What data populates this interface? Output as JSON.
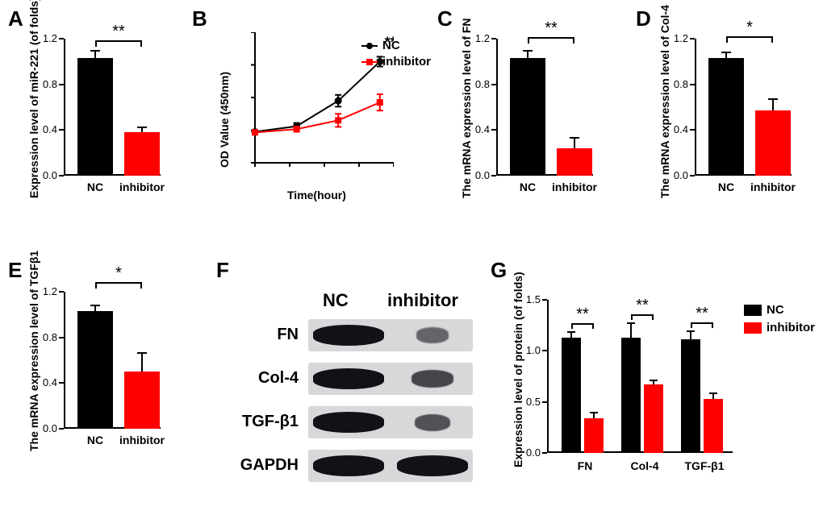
{
  "colors": {
    "nc": "#000000",
    "inhibitor": "#ff0000",
    "axis": "#000000",
    "bg": "#ffffff"
  },
  "panelA": {
    "label": "A",
    "type": "bar",
    "ylabel": "Expression level of miR-221 (of folds)",
    "ylim": [
      0,
      1.2
    ],
    "ytick_step": 0.4,
    "categories": [
      "NC",
      "inhibitor"
    ],
    "values": [
      1.03,
      0.38
    ],
    "errors": [
      0.07,
      0.05
    ],
    "bar_colors": [
      "#000000",
      "#ff0000"
    ],
    "sig": "**"
  },
  "panelB": {
    "label": "B",
    "type": "line",
    "ylabel": "OD Value (450nm)",
    "xlabel": "Time(hour)",
    "ylim": [
      0,
      4
    ],
    "ytick_step": 1,
    "xlim": [
      0,
      80
    ],
    "xtick_step": 20,
    "series": [
      {
        "name": "NC",
        "color": "#000000",
        "marker": "circle",
        "x": [
          0,
          24,
          48,
          72
        ],
        "y": [
          0.95,
          1.12,
          1.9,
          3.1
        ],
        "err": [
          0.05,
          0.1,
          0.18,
          0.15
        ]
      },
      {
        "name": "inhibitor",
        "color": "#ff0000",
        "marker": "square",
        "x": [
          0,
          24,
          48,
          72
        ],
        "y": [
          0.93,
          1.03,
          1.3,
          1.85
        ],
        "err": [
          0.05,
          0.08,
          0.2,
          0.25
        ]
      }
    ],
    "sig": "**",
    "legend": [
      "NC",
      "inhibitor"
    ]
  },
  "panelC": {
    "label": "C",
    "type": "bar",
    "ylabel": "The mRNA expression level of FN",
    "ylim": [
      0,
      1.2
    ],
    "ytick_step": 0.4,
    "categories": [
      "NC",
      "inhibitor"
    ],
    "values": [
      1.03,
      0.24
    ],
    "errors": [
      0.07,
      0.1
    ],
    "bar_colors": [
      "#000000",
      "#ff0000"
    ],
    "sig": "**"
  },
  "panelD": {
    "label": "D",
    "type": "bar",
    "ylabel": "The mRNA expression level of Col-4",
    "ylim": [
      0,
      1.2
    ],
    "ytick_step": 0.4,
    "categories": [
      "NC",
      "inhibitor"
    ],
    "values": [
      1.03,
      0.57
    ],
    "errors": [
      0.06,
      0.11
    ],
    "bar_colors": [
      "#000000",
      "#ff0000"
    ],
    "sig": "*"
  },
  "panelE": {
    "label": "E",
    "type": "bar",
    "ylabel": "The mRNA expression level of TGFβ1",
    "ylim": [
      0,
      1.2
    ],
    "ytick_step": 0.4,
    "categories": [
      "NC",
      "inhibitor"
    ],
    "values": [
      1.03,
      0.5
    ],
    "errors": [
      0.06,
      0.17
    ],
    "bar_colors": [
      "#000000",
      "#ff0000"
    ],
    "sig": "*"
  },
  "panelF": {
    "label": "F",
    "type": "western-blot",
    "lane_headers": [
      "NC",
      "inhibitor"
    ],
    "rows": [
      "FN",
      "Col-4",
      "TGF-β1",
      "GAPDH"
    ],
    "intensity": [
      [
        1.0,
        0.35
      ],
      [
        1.0,
        0.6
      ],
      [
        1.0,
        0.5
      ],
      [
        1.0,
        1.0
      ]
    ]
  },
  "panelG": {
    "label": "G",
    "type": "grouped-bar",
    "ylabel": "Expression level of protein (of folds)",
    "ylim": [
      0,
      1.5
    ],
    "ytick_step": 0.5,
    "groups": [
      "FN",
      "Col-4",
      "TGF-β1"
    ],
    "series": [
      {
        "name": "NC",
        "color": "#000000",
        "values": [
          1.13,
          1.13,
          1.11
        ],
        "errors": [
          0.06,
          0.15,
          0.09
        ]
      },
      {
        "name": "inhibitor",
        "color": "#ff0000",
        "values": [
          0.34,
          0.67,
          0.53
        ],
        "errors": [
          0.06,
          0.05,
          0.06
        ]
      }
    ],
    "sig": [
      "**",
      "**",
      "**"
    ],
    "legend": [
      "NC",
      "inhibitor"
    ]
  }
}
